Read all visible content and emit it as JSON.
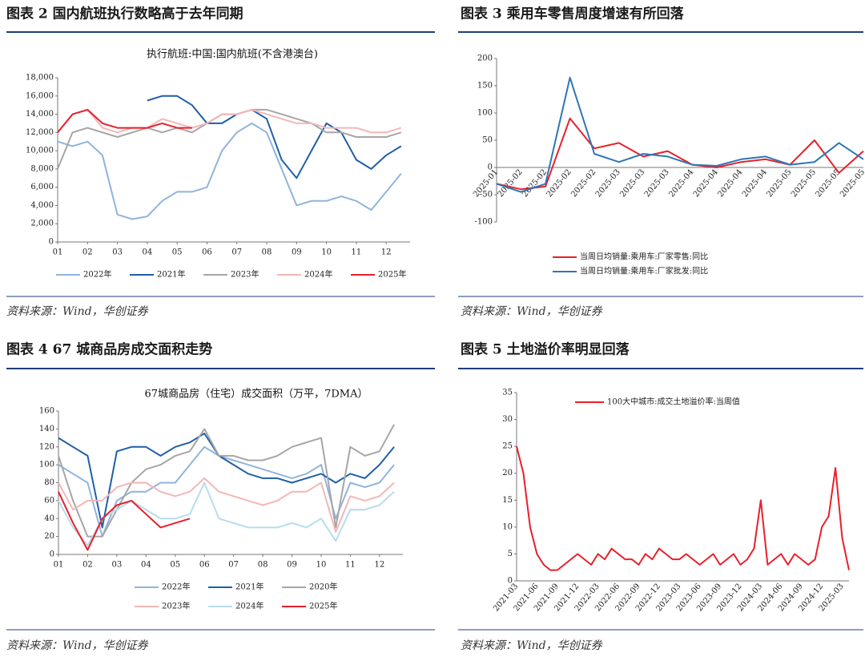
{
  "chart_data": [
    {
      "type": "line",
      "figure_title": "图表 2 国内航班执行数略高于去年同期",
      "title": "执行航班:中国:国内航班(不含港澳台)",
      "source": "资料来源：Wind，华创证券",
      "x": [
        1,
        1.5,
        2,
        2.5,
        3,
        3.5,
        4,
        4.5,
        5,
        5.5,
        6,
        6.5,
        7,
        7.5,
        8,
        8.5,
        9,
        9.5,
        10,
        10.5,
        11,
        11.5,
        12,
        12.5
      ],
      "xlim": [
        1,
        12.8
      ],
      "xticks": [
        {
          "value": 1,
          "label": "01"
        },
        {
          "value": 2,
          "label": "02"
        },
        {
          "value": 3,
          "label": "03"
        },
        {
          "value": 4,
          "label": "04"
        },
        {
          "value": 5,
          "label": "05"
        },
        {
          "value": 6,
          "label": "06"
        },
        {
          "value": 7,
          "label": "07"
        },
        {
          "value": 8,
          "label": "08"
        },
        {
          "value": 9,
          "label": "09"
        },
        {
          "value": 10,
          "label": "10"
        },
        {
          "value": 11,
          "label": "11"
        },
        {
          "value": 12,
          "label": "12"
        }
      ],
      "ylim": [
        0,
        18000
      ],
      "yticks": [
        0,
        {
          "value": 2000,
          "label": "2,000"
        },
        {
          "value": 4000,
          "label": "4,000"
        },
        {
          "value": 6000,
          "label": "6,000"
        },
        {
          "value": 8000,
          "label": "8,000"
        },
        {
          "value": 10000,
          "label": "10,000"
        },
        {
          "value": 12000,
          "label": "12,000"
        },
        {
          "value": 14000,
          "label": "14,000"
        },
        {
          "value": 16000,
          "label": "16,000"
        },
        {
          "value": 18000,
          "label": "18,000"
        }
      ],
      "series": [
        {
          "name": "2022年",
          "color": "#8fb4dc",
          "values": [
            11000,
            10500,
            11000,
            9500,
            3000,
            2500,
            2800,
            4500,
            5500,
            5500,
            6000,
            10000,
            12000,
            13000,
            12000,
            8000,
            4000,
            4500,
            4500,
            5000,
            4500,
            3500,
            5500,
            7500
          ]
        },
        {
          "name": "2021年",
          "color": "#1f5fa8",
          "values": [
            null,
            null,
            null,
            null,
            null,
            null,
            15500,
            16000,
            16000,
            15000,
            13000,
            13000,
            14000,
            14500,
            13500,
            9000,
            7000,
            10000,
            13000,
            12000,
            9000,
            8000,
            9500,
            10500
          ]
        },
        {
          "name": "2023年",
          "color": "#a6a6a6",
          "values": [
            8000,
            12000,
            12500,
            12000,
            11500,
            12000,
            12500,
            12000,
            12500,
            12000,
            13000,
            14000,
            14000,
            14500,
            14500,
            14000,
            13500,
            13000,
            12000,
            12000,
            11500,
            11500,
            11500,
            12000
          ]
        },
        {
          "name": "2024年",
          "color": "#f4b6b6",
          "values": [
            12000,
            14000,
            14500,
            12500,
            12000,
            12500,
            12500,
            13500,
            13000,
            12500,
            13000,
            14000,
            14000,
            14500,
            14000,
            13500,
            13000,
            13000,
            12500,
            12500,
            12500,
            12000,
            12000,
            12500
          ]
        },
        {
          "name": "2025年",
          "color": "#e8202a",
          "values": [
            12000,
            14000,
            14500,
            13000,
            12500,
            12500,
            12500,
            13000,
            12500,
            12500,
            null,
            null,
            null,
            null,
            null,
            null,
            null,
            null,
            null,
            null,
            null,
            null,
            null,
            null
          ]
        }
      ]
    },
    {
      "type": "line",
      "figure_title": "图表 3 乘用车零售周度增速有所回落",
      "source": "资料来源：Wind，华创证券",
      "categories": [
        "2025-01",
        "2025-02",
        "2025-02",
        "2025-02",
        "2025-02",
        "2025-03",
        "2025-03",
        "2025-03",
        "2025-04",
        "2025-04",
        "2025-04",
        "2025-04",
        "2025-05",
        "2025-05",
        "2025-05",
        "2025-05"
      ],
      "ylim": [
        -100,
        200
      ],
      "yticks": [
        -100,
        -50,
        0,
        50,
        100,
        150,
        200
      ],
      "series": [
        {
          "name": "当周日均销量:乘用车:厂家零售:同比",
          "color": "#e8202a",
          "values": [
            -30,
            -40,
            -35,
            90,
            35,
            45,
            20,
            30,
            5,
            0,
            10,
            15,
            5,
            50,
            -10,
            30
          ]
        },
        {
          "name": "当周日均销量:乘用车:厂家批发:同比",
          "color": "#2e75b6",
          "values": [
            -30,
            -45,
            -30,
            165,
            25,
            10,
            25,
            20,
            5,
            3,
            15,
            20,
            5,
            10,
            45,
            15
          ]
        }
      ]
    },
    {
      "type": "line",
      "figure_title": "图表 4 67 城商品房成交面积走势",
      "title": "67城商品房（住宅）成交面积（万平，7DMA）",
      "source": "资料来源：Wind，华创证券",
      "x": [
        1,
        1.5,
        2,
        2.5,
        3,
        3.5,
        4,
        4.5,
        5,
        5.5,
        6,
        6.5,
        7,
        7.5,
        8,
        8.5,
        9,
        9.5,
        10,
        10.5,
        11,
        11.5,
        12,
        12.5
      ],
      "xlim": [
        1,
        12.8
      ],
      "xticks": [
        {
          "value": 1,
          "label": "01"
        },
        {
          "value": 2,
          "label": "02"
        },
        {
          "value": 3,
          "label": "03"
        },
        {
          "value": 4,
          "label": "04"
        },
        {
          "value": 5,
          "label": "05"
        },
        {
          "value": 6,
          "label": "06"
        },
        {
          "value": 7,
          "label": "07"
        },
        {
          "value": 8,
          "label": "08"
        },
        {
          "value": 9,
          "label": "09"
        },
        {
          "value": 10,
          "label": "10"
        },
        {
          "value": 11,
          "label": "11"
        },
        {
          "value": 12,
          "label": "12"
        }
      ],
      "ylim": [
        0,
        160
      ],
      "yticks": [
        0,
        20,
        40,
        60,
        80,
        100,
        120,
        140,
        160
      ],
      "series": [
        {
          "name": "2022年",
          "color": "#8fb4dc",
          "values": [
            100,
            90,
            80,
            20,
            60,
            70,
            70,
            80,
            80,
            100,
            120,
            110,
            105,
            100,
            95,
            90,
            85,
            90,
            100,
            40,
            80,
            75,
            80,
            100
          ]
        },
        {
          "name": "2021年",
          "color": "#1f5fa8",
          "values": [
            130,
            120,
            110,
            30,
            115,
            120,
            120,
            110,
            120,
            125,
            135,
            110,
            100,
            90,
            85,
            85,
            80,
            85,
            90,
            80,
            90,
            85,
            100,
            120
          ]
        },
        {
          "name": "2020年",
          "color": "#a6a6a6",
          "values": [
            110,
            60,
            20,
            20,
            50,
            80,
            95,
            100,
            110,
            115,
            140,
            110,
            110,
            105,
            105,
            110,
            120,
            125,
            130,
            30,
            120,
            110,
            115,
            145
          ]
        },
        {
          "name": "2023年",
          "color": "#f4b6b6",
          "values": [
            80,
            50,
            60,
            60,
            75,
            80,
            80,
            70,
            65,
            70,
            85,
            70,
            65,
            60,
            55,
            60,
            70,
            70,
            80,
            25,
            65,
            60,
            65,
            80
          ]
        },
        {
          "name": "2024年",
          "color": "#b7dcef",
          "values": [
            60,
            30,
            10,
            40,
            50,
            60,
            50,
            40,
            40,
            45,
            80,
            40,
            35,
            30,
            30,
            30,
            35,
            30,
            40,
            15,
            50,
            50,
            55,
            70
          ]
        },
        {
          "name": "2025年",
          "color": "#e8202a",
          "values": [
            70,
            35,
            5,
            40,
            55,
            60,
            45,
            30,
            35,
            40,
            null,
            null,
            null,
            null,
            null,
            null,
            null,
            null,
            null,
            null,
            null,
            null,
            null,
            null
          ]
        }
      ]
    },
    {
      "type": "line",
      "figure_title": "图表 5 土地溢价率明显回落",
      "source": "资料来源：Wind，华创证券",
      "categories": [
        "2021-03",
        null,
        null,
        "2021-06",
        null,
        null,
        "2021-09",
        null,
        null,
        "2021-12",
        null,
        null,
        "2022-03",
        null,
        null,
        "2022-06",
        null,
        null,
        "2022-09",
        null,
        null,
        "2022-12",
        null,
        null,
        "2023-03",
        null,
        null,
        "2023-06",
        null,
        null,
        "2023-09",
        null,
        null,
        "2023-12",
        null,
        null,
        "2024-03",
        null,
        null,
        "2024-06",
        null,
        null,
        "2024-09",
        null,
        null,
        "2024-12",
        null,
        null,
        "2025-03",
        null
      ],
      "ylim": [
        0,
        35
      ],
      "yticks": [
        0,
        5,
        10,
        15,
        20,
        25,
        30,
        35
      ],
      "series": [
        {
          "name": "100大中城市:成交土地溢价率:当周值",
          "color": "#e8202a",
          "values": [
            25,
            20,
            10,
            5,
            3,
            2,
            2,
            3,
            4,
            5,
            4,
            3,
            5,
            4,
            6,
            5,
            4,
            4,
            3,
            5,
            4,
            6,
            5,
            4,
            4,
            5,
            4,
            3,
            4,
            5,
            3,
            4,
            5,
            3,
            4,
            6,
            15,
            3,
            4,
            5,
            3,
            5,
            4,
            3,
            4,
            10,
            12,
            21,
            8,
            2
          ]
        }
      ]
    }
  ]
}
